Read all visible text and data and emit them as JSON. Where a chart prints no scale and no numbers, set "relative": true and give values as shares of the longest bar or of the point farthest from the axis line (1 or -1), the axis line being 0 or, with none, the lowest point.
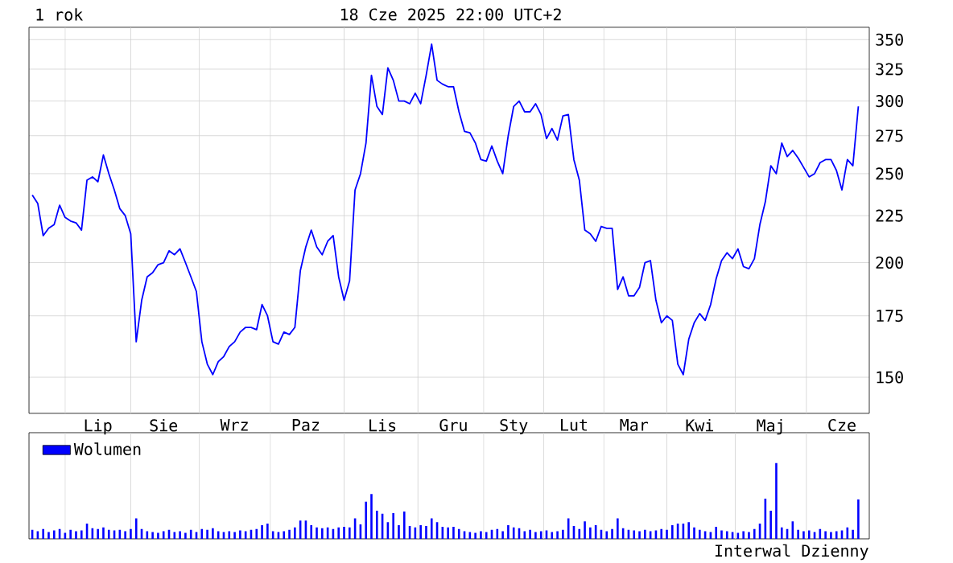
{
  "chart_data": [
    {
      "type": "line",
      "title": "1 rok",
      "subtitle": "18 Cze 2025 22:00 UTC+2",
      "color": "#0000ff",
      "grid": true,
      "log": "y",
      "ylim": [
        137,
        361
      ],
      "yticks": [
        150,
        175,
        200,
        225,
        250,
        275,
        300,
        325,
        350
      ],
      "categories": [
        null,
        null,
        null,
        null,
        null,
        null,
        null,
        null,
        null,
        null,
        null,
        null,
        "Lip",
        null,
        null,
        null,
        null,
        null,
        null,
        null,
        null,
        null,
        null,
        null,
        "Sie",
        null,
        null,
        null,
        null,
        null,
        null,
        null,
        null,
        null,
        null,
        null,
        null,
        "Wrz",
        null,
        null,
        null,
        null,
        null,
        null,
        null,
        null,
        null,
        null,
        null,
        null,
        "Paz",
        null,
        null,
        null,
        null,
        null,
        null,
        null,
        null,
        null,
        null,
        null,
        null,
        null,
        "Lis",
        null,
        null,
        null,
        null,
        null,
        null,
        null,
        null,
        null,
        null,
        null,
        null,
        "Gru",
        null,
        null,
        null,
        null,
        null,
        null,
        null,
        null,
        null,
        null,
        "Sty",
        null,
        null,
        null,
        null,
        null,
        null,
        null,
        null,
        null,
        null,
        "Lut",
        null,
        null,
        null,
        null,
        null,
        null,
        null,
        null,
        null,
        null,
        "Mar",
        null,
        null,
        null,
        null,
        null,
        null,
        null,
        null,
        null,
        null,
        null,
        "Kwi",
        null,
        null,
        null,
        null,
        null,
        null,
        null,
        null,
        null,
        null,
        null,
        null,
        "Maj",
        null,
        null,
        null,
        null,
        null,
        null,
        null,
        null,
        null,
        null,
        null,
        null,
        "Cze",
        null,
        null,
        null
      ],
      "values": [
        237,
        232,
        214,
        218,
        220,
        231,
        224,
        222,
        221,
        217,
        246,
        248,
        245,
        262,
        250,
        240,
        229,
        225,
        215,
        164,
        182,
        193,
        195,
        199,
        200,
        206,
        204,
        207,
        200,
        193,
        186,
        164,
        155,
        151,
        156,
        158,
        162,
        164,
        168,
        170,
        170,
        169,
        180,
        175,
        164,
        163,
        168,
        167,
        170,
        196,
        208,
        217,
        208,
        204,
        211,
        214,
        193,
        182,
        191,
        240,
        250,
        270,
        320,
        296,
        290,
        326,
        316,
        300,
        300,
        298,
        306,
        298,
        320,
        346,
        316,
        313,
        311,
        311,
        292,
        278,
        277,
        270,
        259,
        258,
        268,
        258,
        250,
        275,
        296,
        300,
        292,
        292,
        298,
        290,
        273,
        280,
        272,
        289,
        290,
        259,
        246,
        217,
        215,
        211,
        219,
        218,
        218,
        187,
        193,
        184,
        184,
        188,
        200,
        201,
        182,
        172,
        175,
        173,
        155,
        151,
        165,
        172,
        176,
        173,
        180,
        192,
        201,
        205,
        202,
        207,
        198,
        197,
        202,
        220,
        233,
        255,
        250,
        270,
        261,
        265,
        260,
        254,
        248,
        250,
        257,
        259,
        259,
        252,
        240,
        259,
        255,
        296
      ]
    },
    {
      "type": "bar",
      "relative": true,
      "legend": "top left",
      "grid": "x",
      "annotations": [
        "Interwal Dzienny"
      ],
      "categories": [
        null,
        null,
        null,
        null,
        null,
        null,
        null,
        null,
        null,
        null,
        null,
        null,
        null,
        null,
        null,
        null,
        null,
        null,
        null,
        null,
        null,
        null,
        null,
        null,
        null,
        null,
        null,
        null,
        null,
        null,
        null,
        null,
        null,
        null,
        null,
        null,
        null,
        null,
        null,
        null,
        null,
        null,
        null,
        null,
        null,
        null,
        null,
        null,
        null,
        null,
        null,
        null,
        null,
        null,
        null,
        null,
        null,
        null,
        null,
        null,
        null,
        null,
        null,
        null,
        null,
        null,
        null,
        null,
        null,
        null,
        null,
        null,
        null,
        null,
        null,
        null,
        null,
        null,
        null,
        null,
        null,
        null,
        null,
        null,
        null,
        null,
        null,
        null,
        null,
        null,
        null,
        null,
        null,
        null,
        null,
        null,
        null,
        null,
        null,
        null,
        null,
        null,
        null,
        null,
        null,
        null,
        null,
        null,
        null,
        null,
        null,
        null,
        null,
        null,
        null,
        null,
        null,
        null,
        null,
        null,
        null,
        null,
        null,
        null,
        null,
        null,
        null,
        null,
        null,
        null,
        null,
        null,
        null,
        null,
        null,
        null,
        null,
        null,
        null,
        null,
        null,
        null,
        null,
        null,
        null,
        null,
        null,
        null,
        null,
        null,
        null,
        null
      ],
      "series": [
        {
          "name": "Wolumen",
          "color": "#0000ff",
          "values": [
            0.12,
            0.1,
            0.13,
            0.09,
            0.11,
            0.13,
            0.08,
            0.12,
            0.1,
            0.11,
            0.2,
            0.14,
            0.13,
            0.15,
            0.12,
            0.11,
            0.12,
            0.1,
            0.13,
            0.27,
            0.13,
            0.1,
            0.09,
            0.08,
            0.1,
            0.12,
            0.09,
            0.1,
            0.08,
            0.12,
            0.09,
            0.13,
            0.12,
            0.14,
            0.1,
            0.09,
            0.1,
            0.09,
            0.11,
            0.1,
            0.12,
            0.13,
            0.18,
            0.2,
            0.1,
            0.09,
            0.1,
            0.12,
            0.15,
            0.24,
            0.24,
            0.18,
            0.15,
            0.14,
            0.15,
            0.13,
            0.15,
            0.16,
            0.15,
            0.27,
            0.19,
            0.49,
            0.59,
            0.37,
            0.33,
            0.22,
            0.34,
            0.18,
            0.36,
            0.17,
            0.15,
            0.18,
            0.17,
            0.27,
            0.22,
            0.16,
            0.15,
            0.16,
            0.13,
            0.1,
            0.09,
            0.08,
            0.1,
            0.09,
            0.12,
            0.13,
            0.1,
            0.18,
            0.15,
            0.14,
            0.1,
            0.12,
            0.09,
            0.1,
            0.11,
            0.09,
            0.1,
            0.12,
            0.27,
            0.17,
            0.13,
            0.23,
            0.15,
            0.18,
            0.12,
            0.1,
            0.13,
            0.27,
            0.14,
            0.12,
            0.11,
            0.1,
            0.12,
            0.1,
            0.11,
            0.13,
            0.12,
            0.18,
            0.2,
            0.2,
            0.22,
            0.15,
            0.12,
            0.1,
            0.09,
            0.16,
            0.11,
            0.1,
            0.09,
            0.08,
            0.1,
            0.09,
            0.13,
            0.2,
            0.53,
            0.37,
            1.0,
            0.15,
            0.13,
            0.23,
            0.12,
            0.1,
            0.11,
            0.09,
            0.13,
            0.1,
            0.09,
            0.1,
            0.11,
            0.15,
            0.12,
            0.52
          ]
        }
      ]
    }
  ]
}
